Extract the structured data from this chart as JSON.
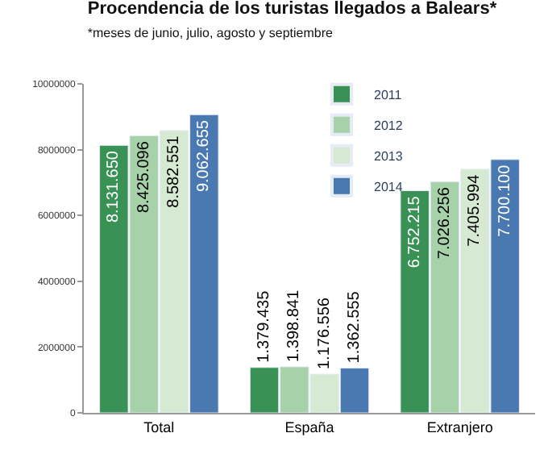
{
  "chart_data": {
    "type": "bar",
    "title": "Procendencia de los turistas llegados a Balears*",
    "subtitle": "*meses de junio, julio, agosto y septiembre",
    "categories": [
      "Total",
      "España",
      "Extranjero"
    ],
    "series": [
      {
        "name": "2011",
        "color": "#3a9156",
        "values": [
          8131650,
          1379435,
          6752215
        ],
        "value_labels": [
          "8.131.650",
          "1.379.435",
          "6.752.215"
        ]
      },
      {
        "name": "2012",
        "color": "#a6d1a9",
        "values": [
          8425096,
          1398841,
          7026256
        ],
        "value_labels": [
          "8.425.096",
          "1.398.841",
          "7.026.256"
        ]
      },
      {
        "name": "2013",
        "color": "#d6e9d3",
        "values": [
          8582551,
          1176556,
          7405994
        ],
        "value_labels": [
          "8.582.551",
          "1.176.556",
          "7.405.994"
        ]
      },
      {
        "name": "2014",
        "color": "#4a78b0",
        "values": [
          9062655,
          1362555,
          7700100
        ],
        "value_labels": [
          "9.062.655",
          "1.362.555",
          "7.700.100"
        ]
      }
    ],
    "ylim": [
      0,
      10000000
    ],
    "yticks": [
      0,
      2000000,
      4000000,
      6000000,
      8000000,
      10000000
    ],
    "legend": "top"
  }
}
